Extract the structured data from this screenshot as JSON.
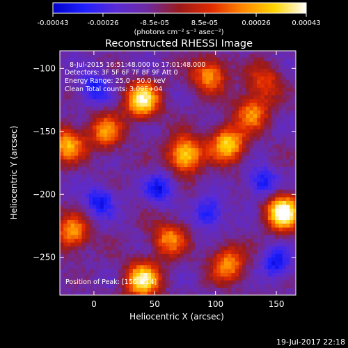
{
  "colorbar": {
    "tick_labels": [
      "-0.00043",
      "-0.00026",
      "-8.5e-05",
      "8.5e-05",
      "0.00026",
      "0.00043"
    ],
    "tick_values": [
      -0.00043,
      -0.00026,
      -8.5e-05,
      8.5e-05,
      0.00026,
      0.00043
    ],
    "range": [
      -0.00043,
      0.00043
    ],
    "units_label": "(photons cm⁻² s⁻¹ asec⁻²)",
    "colors": [
      "#0000cc",
      "#2020ff",
      "#5a2bd6",
      "#6e2a9e",
      "#9b1a1a",
      "#e12a00",
      "#ff8800",
      "#ffd400",
      "#ffffff"
    ]
  },
  "chart_data": {
    "type": "heatmap",
    "title": "Reconstructed RHESSI Image",
    "xlabel": "Heliocentric X (arcsec)",
    "ylabel": "Heliocentric Y (arcsec)",
    "xlim": [
      -28,
      166
    ],
    "ylim": [
      -280,
      -86
    ],
    "x_ticks": [
      0,
      50,
      100,
      150
    ],
    "x_tick_labels": [
      "0",
      "50",
      "100",
      "150"
    ],
    "y_ticks": [
      -250,
      -200,
      -150,
      -100
    ],
    "y_tick_labels": [
      "−250",
      "−200",
      "−150",
      "−100"
    ],
    "annotations": [
      "8-Jul-2015 16:51:48.000 to 17:01:48.000",
      "Detectors: 3F 5F 6F 7F 8F 9F  Att 0",
      "Energy Range: 25.0 - 50.0 keV",
      "Clean     Total counts: 3.09E+04"
    ],
    "peak_label": "Position of Peak: [156,-214]",
    "peak": [
      156,
      -214
    ],
    "bright_regions": [
      {
        "x": 40,
        "y": -125,
        "level": 0.85
      },
      {
        "x": 10,
        "y": -150,
        "level": 0.55
      },
      {
        "x": -22,
        "y": -160,
        "level": 0.65
      },
      {
        "x": -18,
        "y": -230,
        "level": 0.6
      },
      {
        "x": 75,
        "y": -168,
        "level": 0.8
      },
      {
        "x": 110,
        "y": -160,
        "level": 0.75
      },
      {
        "x": 130,
        "y": -135,
        "level": 0.55
      },
      {
        "x": 95,
        "y": -105,
        "level": 0.6
      },
      {
        "x": 156,
        "y": -214,
        "level": 1.0
      },
      {
        "x": 40,
        "y": -268,
        "level": 0.85
      },
      {
        "x": 110,
        "y": -255,
        "level": 0.6
      },
      {
        "x": 62,
        "y": -235,
        "level": 0.55
      },
      {
        "x": 140,
        "y": -110,
        "level": 0.4
      }
    ],
    "dim_regions": [
      {
        "x": 55,
        "y": -195
      },
      {
        "x": 138,
        "y": -190
      },
      {
        "x": 5,
        "y": -205
      },
      {
        "x": 0,
        "y": -115
      },
      {
        "x": 150,
        "y": -255
      },
      {
        "x": 95,
        "y": -215
      }
    ]
  },
  "footer": {
    "timestamp": "19-Jul-2017 22:18"
  }
}
